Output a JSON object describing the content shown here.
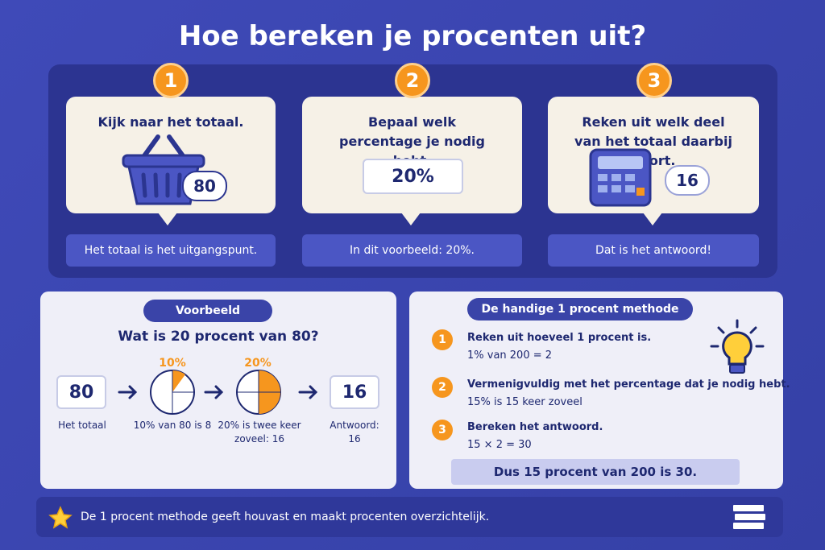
{
  "title": "Hoe bereken je procenten uit?",
  "steps": [
    {
      "number": "1",
      "text": "Kijk naar het totaal.",
      "badge": "80",
      "caption": "Het totaal is het uitgangspunt."
    },
    {
      "number": "2",
      "text": "Bepaal welk percentage je nodig hebt.",
      "badge": "20%",
      "caption": "In dit voorbeeld: 20%."
    },
    {
      "number": "3",
      "text": "Reken uit welk deel van het totaal daarbij hoort.",
      "badge": "16",
      "caption": "Dat is het antwoord!"
    }
  ],
  "example": {
    "label": "Voorbeeld",
    "question": "Wat is 20 procent van 80?",
    "flow": [
      {
        "value": "80",
        "caption": "Het totaal"
      },
      {
        "top": "10%",
        "caption": "10% van 80 is 8"
      },
      {
        "top": "20%",
        "caption": "20% is twee keer zoveel: 16"
      },
      {
        "value": "16",
        "caption": "Antwoord: 16"
      }
    ]
  },
  "method": {
    "label": "De handige 1 procent methode",
    "steps": [
      {
        "number": "1",
        "text": "Reken uit hoeveel 1 procent is.",
        "detail": "1% van 200 = 2"
      },
      {
        "number": "2",
        "text": "Vermenigvuldig met het percentage dat je nodig hebt.",
        "detail": "15% is 15 keer zoveel"
      },
      {
        "number": "3",
        "text": "Bereken het antwoord.",
        "detail": "15 × 2 = 30"
      }
    ],
    "conclusion": "Dus 15 procent van 200 is 30."
  },
  "footer": "De 1 procent methode geeft houvast en maakt procenten overzichtelijk."
}
